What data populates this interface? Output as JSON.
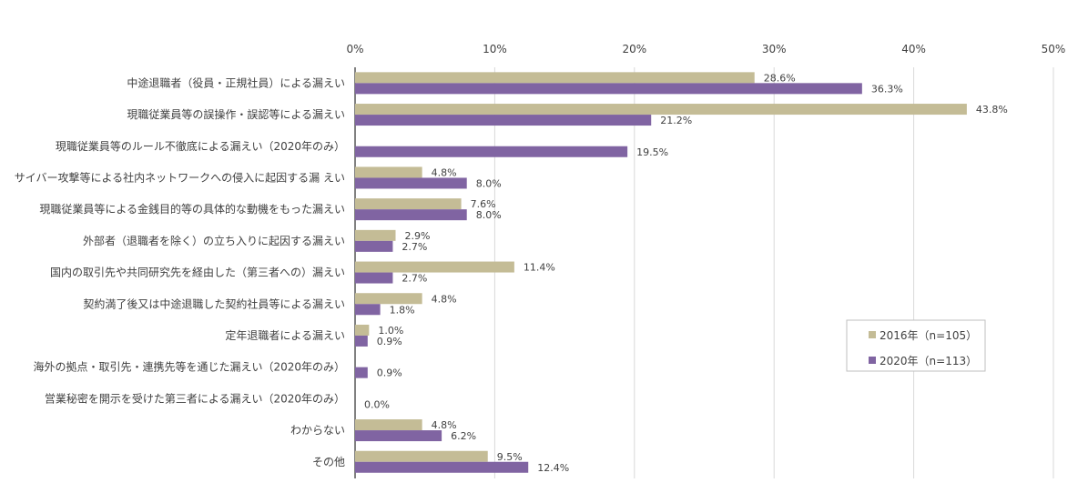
{
  "chart_data": {
    "type": "bar",
    "orientation": "horizontal",
    "categories": [
      "中途退職者（役員・正規社員）による漏えい",
      "現職従業員等の誤操作・誤認等による漏えい",
      "現職従業員等のルール不徹底による漏えい（2020年のみ）",
      "サイバー攻撃等による社内ネットワークへの侵入に起因する漏 えい",
      "現職従業員等による金銭目的等の具体的な動機をもった漏えい",
      "外部者（退職者を除く）の立ち入りに起因する漏えい",
      "国内の取引先や共同研究先を経由した（第三者への）漏えい",
      "契約満了後又は中途退職した契約社員等による漏えい",
      "定年退職者による漏えい",
      "海外の拠点・取引先・連携先等を通じた漏えい（2020年のみ）",
      "営業秘密を開示を受けた第三者による漏えい（2020年のみ）",
      "わからない",
      "その他"
    ],
    "series": [
      {
        "name": "2016年（n=105）",
        "color": "#c4bc96",
        "values": [
          28.6,
          43.8,
          null,
          4.8,
          7.6,
          2.9,
          11.4,
          4.8,
          1.0,
          null,
          null,
          4.8,
          9.5
        ],
        "labels": [
          "28.6%",
          "43.8%",
          "",
          "4.8%",
          "7.6%",
          "2.9%",
          "11.4%",
          "4.8%",
          "1.0%",
          "",
          "",
          "4.8%",
          "9.5%"
        ]
      },
      {
        "name": "2020年（n=113）",
        "color": "#8064a2",
        "values": [
          36.3,
          21.2,
          19.5,
          8.0,
          8.0,
          2.7,
          2.7,
          1.8,
          0.9,
          0.9,
          0.0,
          6.2,
          12.4
        ],
        "labels": [
          "36.3%",
          "21.2%",
          "19.5%",
          "8.0%",
          "8.0%",
          "2.7%",
          "2.7%",
          "1.8%",
          "0.9%",
          "0.9%",
          "0.0%",
          "6.2%",
          "12.4%"
        ]
      }
    ],
    "xlim": [
      0,
      50
    ],
    "ticks": [
      "0%",
      "10%",
      "20%",
      "30%",
      "40%",
      "50%"
    ],
    "tick_values": [
      0,
      10,
      20,
      30,
      40,
      50
    ],
    "grid": true,
    "legend_position": "bottom-right",
    "gridline_color": "#d9d9d9",
    "axis_color": "#000000"
  }
}
